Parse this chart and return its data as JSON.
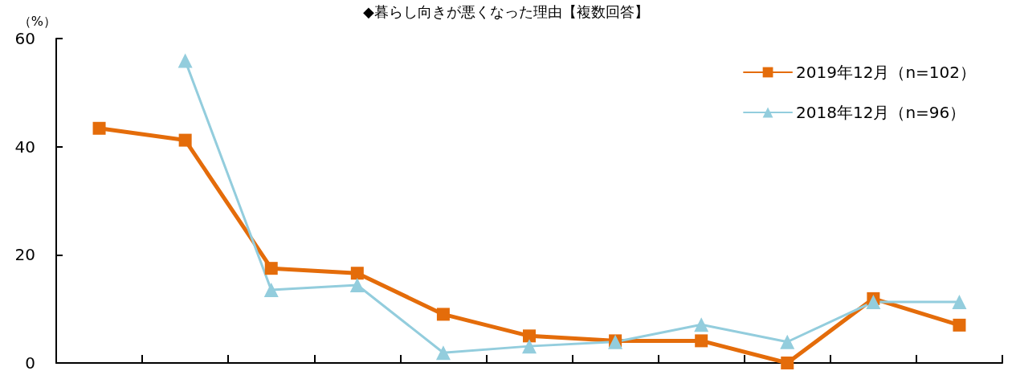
{
  "chart_data": {
    "type": "line",
    "title": "◆暮らし向きが悪くなった理由【複数回答】",
    "ylabel": "（%）",
    "categories": [
      null,
      null,
      null,
      null,
      null,
      null,
      null,
      null,
      null,
      null,
      null
    ],
    "series": [
      {
        "name": "2019年12月（n=102）",
        "color": "#e46c0a",
        "marker": "square",
        "values": [
          43.4,
          41.2,
          17.5,
          16.6,
          9.0,
          5.0,
          4.1,
          4.1,
          0,
          11.9,
          7.0
        ]
      },
      {
        "name": "2018年12月（n=96）",
        "color": "#93cddd",
        "marker": "triangle",
        "values": [
          null,
          55.9,
          13.5,
          14.4,
          1.9,
          3.1,
          3.9,
          7.1,
          3.9,
          11.3,
          11.3
        ]
      }
    ],
    "ylim": [
      0,
      60
    ],
    "yticks": [
      0,
      20,
      40,
      60
    ],
    "grid": false,
    "legend": "top right",
    "line_style": "solid"
  }
}
